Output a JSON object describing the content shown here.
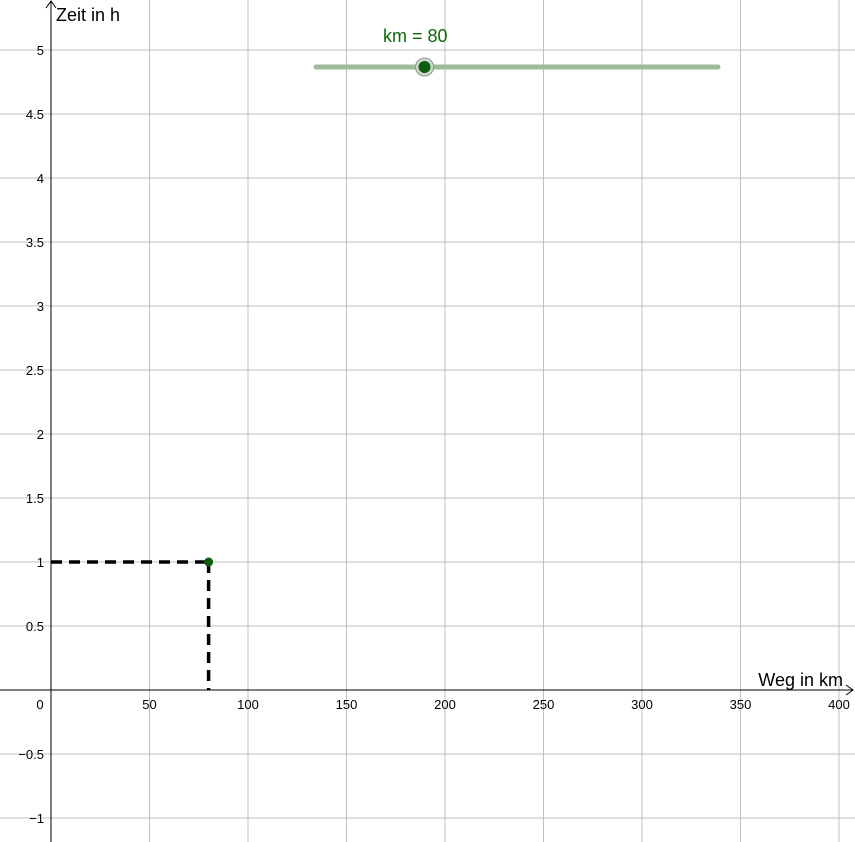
{
  "colors": {
    "slider_track": "#9dbd9a",
    "slider_knob": "#0b5e0b",
    "point": "#0b5e0b",
    "label": "#0b6a0b"
  },
  "chart_data": {
    "type": "scatter",
    "xlabel": "Weg in km",
    "ylabel": "Zeit in h",
    "xlim": [
      0,
      400
    ],
    "ylim": [
      -1,
      5
    ],
    "x_ticks": [
      0,
      50,
      100,
      150,
      200,
      250,
      300,
      350,
      400
    ],
    "x_tick_labels": [
      "0",
      "50",
      "100",
      "150",
      "200",
      "250",
      "300",
      "350",
      "400"
    ],
    "y_ticks": [
      -1,
      -0.5,
      0.5,
      1,
      1.5,
      2,
      2.5,
      3,
      3.5,
      4,
      4.5,
      5
    ],
    "y_tick_labels": [
      "−1",
      "−0.5",
      "0.5",
      "1",
      "1.5",
      "2",
      "2.5",
      "3",
      "3.5",
      "4",
      "4.5",
      "5"
    ],
    "grid": true,
    "points": [
      {
        "x": 80,
        "y": 1
      }
    ]
  },
  "slider": {
    "label": "km = 80",
    "value": 80,
    "value_fraction": 0.27
  }
}
